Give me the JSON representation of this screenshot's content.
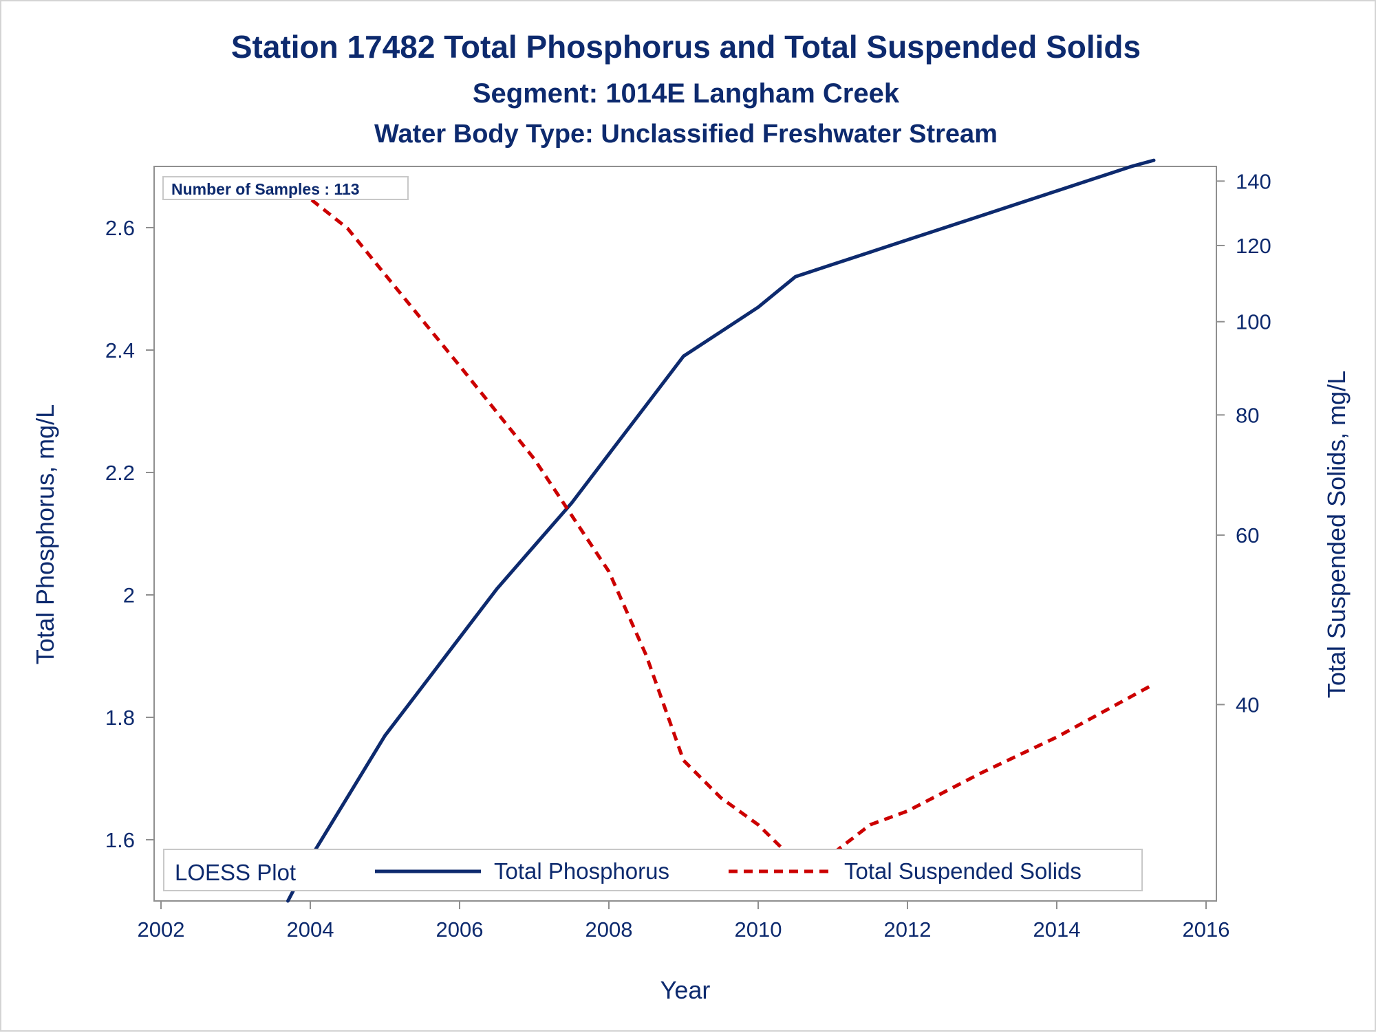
{
  "chart_data": {
    "type": "line",
    "title": "Station 17482  Total Phosphorus and Total Suspended Solids",
    "subtitle": "Segment: 1014E  Langham Creek",
    "subtitle2": "Water Body Type: Unclassified Freshwater Stream",
    "xlabel": "Year",
    "ylabel_left": "Total Phosphorus, mg/L",
    "ylabel_right": "Total Suspended Solids, mg/L",
    "inset_label": "Number of Samples : 113",
    "legend_title": "LOESS Plot",
    "legend_position": "bottom-inside",
    "xlim": [
      2002,
      2016
    ],
    "ylim_left": [
      1.5,
      2.7
    ],
    "ylim_right": [
      25,
      145
    ],
    "y_right_scale": "log",
    "x_ticks": [
      "2002",
      "2004",
      "2006",
      "2008",
      "2010",
      "2012",
      "2014",
      "2016"
    ],
    "y_left_ticks": [
      "1.6",
      "1.8",
      "2",
      "2.2",
      "2.4",
      "2.6"
    ],
    "y_right_ticks": [
      "40",
      "60",
      "80",
      "100",
      "120",
      "140"
    ],
    "grid": false,
    "series": [
      {
        "name": "Total Phosphorus",
        "axis": "left",
        "color": "#0d2a6e",
        "style": "solid",
        "x": [
          2003.7,
          2004.0,
          2004.5,
          2005.0,
          2005.5,
          2006.0,
          2006.5,
          2007.0,
          2007.5,
          2008.0,
          2008.5,
          2009.0,
          2009.5,
          2010.0,
          2010.5,
          2011.0,
          2011.5,
          2012.0,
          2012.5,
          2013.0,
          2013.5,
          2014.0,
          2014.5,
          2015.0,
          2015.3
        ],
        "y": [
          1.5,
          1.57,
          1.67,
          1.77,
          1.85,
          1.93,
          2.01,
          2.08,
          2.15,
          2.23,
          2.31,
          2.39,
          2.43,
          2.47,
          2.52,
          2.54,
          2.56,
          2.58,
          2.6,
          2.62,
          2.64,
          2.66,
          2.68,
          2.7,
          2.71
        ]
      },
      {
        "name": "Total Suspended Solids",
        "axis": "right",
        "color": "#cc0000",
        "style": "dashed",
        "x": [
          2003.7,
          2004.5,
          2005.0,
          2006.0,
          2007.0,
          2008.0,
          2008.5,
          2009.0,
          2009.5,
          2010.0,
          2010.6,
          2011.0,
          2011.5,
          2012.0,
          2013.0,
          2014.0,
          2015.3
        ],
        "y": [
          140,
          125,
          112,
          90,
          72,
          55,
          45,
          35,
          32,
          30,
          27,
          28,
          30,
          31,
          34,
          37,
          42
        ]
      }
    ]
  }
}
